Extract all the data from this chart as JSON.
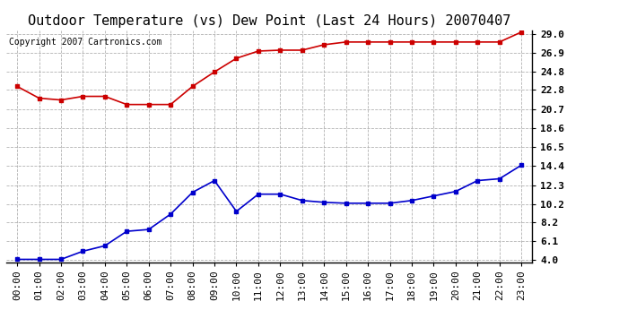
{
  "title": "Outdoor Temperature (vs) Dew Point (Last 24 Hours) 20070407",
  "copyright_text": "Copyright 2007 Cartronics.com",
  "x_labels": [
    "00:00",
    "01:00",
    "02:00",
    "03:00",
    "04:00",
    "05:00",
    "06:00",
    "07:00",
    "08:00",
    "09:00",
    "10:00",
    "11:00",
    "12:00",
    "13:00",
    "14:00",
    "15:00",
    "16:00",
    "17:00",
    "18:00",
    "19:00",
    "20:00",
    "21:00",
    "22:00",
    "23:00"
  ],
  "temp_data": [
    23.2,
    21.9,
    21.7,
    22.1,
    22.1,
    21.2,
    21.2,
    21.2,
    23.2,
    24.8,
    26.3,
    27.1,
    27.2,
    27.2,
    27.8,
    28.1,
    28.1,
    28.1,
    28.1,
    28.1,
    28.1,
    28.1,
    28.1,
    29.2
  ],
  "dew_data": [
    4.1,
    4.1,
    4.1,
    5.0,
    5.6,
    7.2,
    7.4,
    9.1,
    11.5,
    12.8,
    9.4,
    11.3,
    11.3,
    10.6,
    10.4,
    10.3,
    10.3,
    10.3,
    10.6,
    11.1,
    11.6,
    12.8,
    13.0,
    14.5
  ],
  "temp_color": "#cc0000",
  "dew_color": "#0000cc",
  "marker": "s",
  "marker_size": 2.5,
  "line_width": 1.2,
  "y_ticks": [
    4.0,
    6.1,
    8.2,
    10.2,
    12.3,
    14.4,
    16.5,
    18.6,
    20.7,
    22.8,
    24.8,
    26.9,
    29.0
  ],
  "y_min": 3.8,
  "y_max": 29.4,
  "bg_color": "#ffffff",
  "grid_color": "#aaaaaa",
  "title_fontsize": 11,
  "tick_fontsize": 8,
  "copyright_fontsize": 7
}
